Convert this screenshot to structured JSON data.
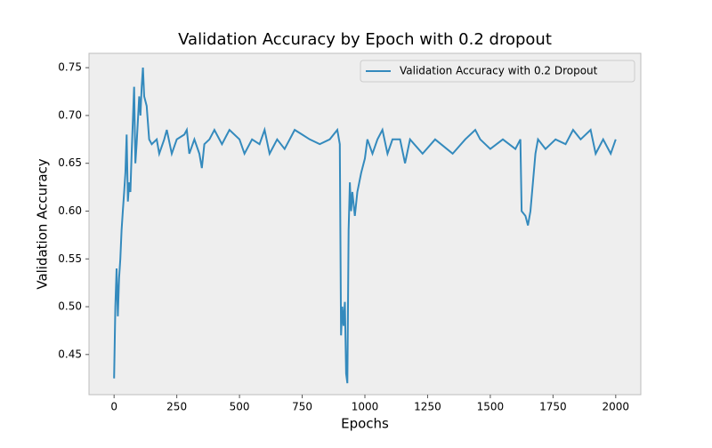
{
  "chart_data": {
    "type": "line",
    "title": "Validation Accuracy by Epoch with 0.2 dropout",
    "x_label": "Epochs",
    "y_label": "Validation Accuracy",
    "x": [
      0,
      5,
      10,
      15,
      20,
      25,
      30,
      35,
      40,
      45,
      50,
      55,
      60,
      65,
      70,
      80,
      85,
      90,
      100,
      105,
      110,
      115,
      120,
      130,
      140,
      150,
      170,
      180,
      200,
      210,
      230,
      250,
      280,
      290,
      300,
      320,
      340,
      350,
      360,
      380,
      400,
      430,
      460,
      500,
      520,
      550,
      580,
      600,
      620,
      650,
      680,
      700,
      720,
      750,
      780,
      820,
      860,
      890,
      900,
      905,
      910,
      915,
      920,
      925,
      930,
      935,
      940,
      945,
      950,
      960,
      970,
      985,
      1000,
      1010,
      1030,
      1050,
      1070,
      1090,
      1110,
      1140,
      1160,
      1180,
      1230,
      1280,
      1350,
      1400,
      1440,
      1460,
      1500,
      1550,
      1600,
      1620,
      1625,
      1640,
      1650,
      1660,
      1670,
      1680,
      1690,
      1720,
      1760,
      1800,
      1830,
      1860,
      1900,
      1920,
      1950,
      1980,
      2000
    ],
    "series": [
      {
        "name": "Validation Accuracy with 0.2 Dropout",
        "color": "#348abd",
        "values": [
          0.425,
          0.5,
          0.54,
          0.49,
          0.53,
          0.55,
          0.58,
          0.6,
          0.62,
          0.64,
          0.68,
          0.61,
          0.63,
          0.62,
          0.66,
          0.73,
          0.65,
          0.67,
          0.72,
          0.7,
          0.73,
          0.75,
          0.72,
          0.71,
          0.675,
          0.67,
          0.675,
          0.66,
          0.675,
          0.685,
          0.66,
          0.675,
          0.68,
          0.685,
          0.66,
          0.675,
          0.66,
          0.645,
          0.67,
          0.675,
          0.685,
          0.67,
          0.685,
          0.675,
          0.66,
          0.675,
          0.67,
          0.685,
          0.66,
          0.675,
          0.665,
          0.675,
          0.685,
          0.68,
          0.675,
          0.67,
          0.675,
          0.685,
          0.67,
          0.47,
          0.5,
          0.48,
          0.505,
          0.43,
          0.42,
          0.58,
          0.63,
          0.6,
          0.62,
          0.595,
          0.62,
          0.64,
          0.655,
          0.675,
          0.66,
          0.675,
          0.685,
          0.66,
          0.675,
          0.675,
          0.65,
          0.675,
          0.66,
          0.675,
          0.66,
          0.675,
          0.685,
          0.675,
          0.665,
          0.675,
          0.665,
          0.675,
          0.6,
          0.595,
          0.585,
          0.6,
          0.63,
          0.66,
          0.675,
          0.665,
          0.675,
          0.67,
          0.685,
          0.675,
          0.685,
          0.66,
          0.675,
          0.66,
          0.675
        ]
      }
    ],
    "xlim": [
      -100,
      2100
    ],
    "xticks": [
      0,
      250,
      500,
      750,
      1000,
      1250,
      1500,
      1750,
      2000
    ],
    "ylim": [
      0.408,
      0.765
    ],
    "yticks": [
      0.45,
      {
        "value": 0.5,
        "label": "0.50"
      },
      0.55,
      {
        "value": 0.6,
        "label": "0.60"
      },
      0.65,
      {
        "value": 0.7,
        "label": "0.70"
      },
      0.75
    ],
    "legend": "upper right",
    "grid": false
  }
}
